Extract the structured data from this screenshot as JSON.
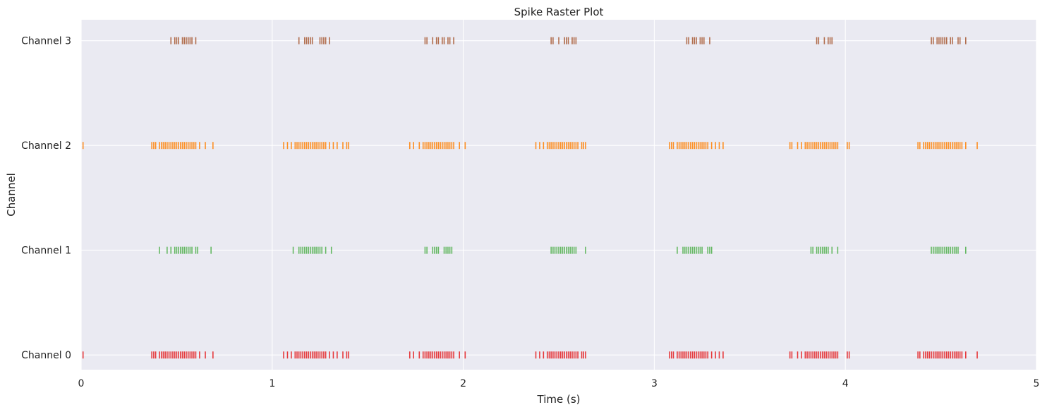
{
  "chart_data": {
    "type": "scatter",
    "subtype": "raster",
    "title": "Spike Raster Plot",
    "xlabel": "Time (s)",
    "ylabel": "Channel",
    "xlim": [
      0,
      5
    ],
    "ylim": [
      -0.14,
      3.2
    ],
    "xticks": [
      0,
      1,
      2,
      3,
      4,
      5
    ],
    "yticks": [
      {
        "value": 0,
        "label": "Channel 0"
      },
      {
        "value": 1,
        "label": "Channel 1"
      },
      {
        "value": 2,
        "label": "Channel 2"
      },
      {
        "value": 3,
        "label": "Channel 3"
      }
    ],
    "grid": true,
    "background": "#eaeaf2",
    "grid_color": "#ffffff",
    "series": [
      {
        "channel": 0,
        "color": "#e41a1c",
        "spike_times": [
          0.01,
          0.37,
          0.38,
          0.39,
          0.41,
          0.42,
          0.43,
          0.44,
          0.45,
          0.46,
          0.47,
          0.48,
          0.49,
          0.5,
          0.51,
          0.52,
          0.53,
          0.54,
          0.55,
          0.56,
          0.57,
          0.58,
          0.59,
          0.6,
          0.62,
          0.65,
          0.69,
          1.06,
          1.08,
          1.1,
          1.12,
          1.13,
          1.14,
          1.15,
          1.16,
          1.17,
          1.18,
          1.19,
          1.2,
          1.21,
          1.22,
          1.23,
          1.24,
          1.25,
          1.26,
          1.27,
          1.28,
          1.3,
          1.32,
          1.34,
          1.37,
          1.39,
          1.4,
          1.72,
          1.74,
          1.77,
          1.79,
          1.8,
          1.81,
          1.82,
          1.83,
          1.84,
          1.85,
          1.86,
          1.87,
          1.88,
          1.89,
          1.9,
          1.91,
          1.92,
          1.93,
          1.94,
          1.95,
          1.98,
          2.01,
          2.38,
          2.4,
          2.42,
          2.44,
          2.45,
          2.46,
          2.47,
          2.48,
          2.49,
          2.5,
          2.51,
          2.52,
          2.53,
          2.54,
          2.55,
          2.56,
          2.57,
          2.58,
          2.59,
          2.6,
          2.62,
          2.63,
          2.64,
          3.08,
          3.09,
          3.1,
          3.12,
          3.13,
          3.14,
          3.15,
          3.16,
          3.17,
          3.18,
          3.19,
          3.2,
          3.21,
          3.22,
          3.23,
          3.24,
          3.25,
          3.26,
          3.27,
          3.28,
          3.3,
          3.32,
          3.34,
          3.36,
          3.71,
          3.72,
          3.75,
          3.77,
          3.79,
          3.8,
          3.81,
          3.82,
          3.83,
          3.84,
          3.85,
          3.86,
          3.87,
          3.88,
          3.89,
          3.9,
          3.91,
          3.92,
          3.93,
          3.94,
          3.95,
          3.96,
          4.01,
          4.02,
          4.38,
          4.39,
          4.41,
          4.42,
          4.43,
          4.44,
          4.45,
          4.46,
          4.47,
          4.48,
          4.49,
          4.5,
          4.51,
          4.52,
          4.53,
          4.54,
          4.55,
          4.56,
          4.57,
          4.58,
          4.59,
          4.6,
          4.61,
          4.63,
          4.69
        ]
      },
      {
        "channel": 1,
        "color": "#4daf4a",
        "spike_times": [
          0.41,
          0.45,
          0.47,
          0.49,
          0.5,
          0.51,
          0.52,
          0.53,
          0.54,
          0.55,
          0.56,
          0.57,
          0.58,
          0.6,
          0.61,
          0.68,
          1.11,
          1.14,
          1.15,
          1.16,
          1.17,
          1.18,
          1.19,
          1.2,
          1.21,
          1.22,
          1.23,
          1.24,
          1.25,
          1.26,
          1.28,
          1.31,
          1.8,
          1.81,
          1.84,
          1.85,
          1.86,
          1.87,
          1.9,
          1.91,
          1.92,
          1.93,
          1.94,
          2.46,
          2.47,
          2.48,
          2.49,
          2.5,
          2.51,
          2.52,
          2.53,
          2.54,
          2.55,
          2.56,
          2.57,
          2.58,
          2.59,
          2.64,
          3.12,
          3.15,
          3.16,
          3.17,
          3.18,
          3.19,
          3.2,
          3.21,
          3.22,
          3.23,
          3.24,
          3.25,
          3.28,
          3.29,
          3.3,
          3.82,
          3.83,
          3.85,
          3.86,
          3.87,
          3.88,
          3.89,
          3.9,
          3.91,
          3.93,
          3.96,
          4.45,
          4.46,
          4.47,
          4.48,
          4.49,
          4.5,
          4.51,
          4.52,
          4.53,
          4.54,
          4.55,
          4.56,
          4.57,
          4.58,
          4.59,
          4.63
        ]
      },
      {
        "channel": 2,
        "color": "#ff7f00",
        "spike_times": [
          0.01,
          0.37,
          0.38,
          0.39,
          0.41,
          0.42,
          0.43,
          0.44,
          0.45,
          0.46,
          0.47,
          0.48,
          0.49,
          0.5,
          0.51,
          0.52,
          0.53,
          0.54,
          0.55,
          0.56,
          0.57,
          0.58,
          0.59,
          0.6,
          0.62,
          0.65,
          0.69,
          1.06,
          1.08,
          1.1,
          1.12,
          1.13,
          1.14,
          1.15,
          1.16,
          1.17,
          1.18,
          1.19,
          1.2,
          1.21,
          1.22,
          1.23,
          1.24,
          1.25,
          1.26,
          1.27,
          1.28,
          1.3,
          1.32,
          1.34,
          1.37,
          1.39,
          1.4,
          1.72,
          1.74,
          1.77,
          1.79,
          1.8,
          1.81,
          1.82,
          1.83,
          1.84,
          1.85,
          1.86,
          1.87,
          1.88,
          1.89,
          1.9,
          1.91,
          1.92,
          1.93,
          1.94,
          1.95,
          1.98,
          2.01,
          2.38,
          2.4,
          2.42,
          2.44,
          2.45,
          2.46,
          2.47,
          2.48,
          2.49,
          2.5,
          2.51,
          2.52,
          2.53,
          2.54,
          2.55,
          2.56,
          2.57,
          2.58,
          2.59,
          2.6,
          2.62,
          2.63,
          2.64,
          3.08,
          3.09,
          3.1,
          3.12,
          3.13,
          3.14,
          3.15,
          3.16,
          3.17,
          3.18,
          3.19,
          3.2,
          3.21,
          3.22,
          3.23,
          3.24,
          3.25,
          3.26,
          3.27,
          3.28,
          3.3,
          3.32,
          3.34,
          3.36,
          3.71,
          3.72,
          3.75,
          3.77,
          3.79,
          3.8,
          3.81,
          3.82,
          3.83,
          3.84,
          3.85,
          3.86,
          3.87,
          3.88,
          3.89,
          3.9,
          3.91,
          3.92,
          3.93,
          3.94,
          3.95,
          3.96,
          4.01,
          4.02,
          4.38,
          4.39,
          4.41,
          4.42,
          4.43,
          4.44,
          4.45,
          4.46,
          4.47,
          4.48,
          4.49,
          4.5,
          4.51,
          4.52,
          4.53,
          4.54,
          4.55,
          4.56,
          4.57,
          4.58,
          4.59,
          4.6,
          4.61,
          4.63,
          4.69
        ]
      },
      {
        "channel": 3,
        "color": "#a6562f",
        "spike_times": [
          0.47,
          0.49,
          0.5,
          0.51,
          0.53,
          0.54,
          0.55,
          0.56,
          0.57,
          0.58,
          0.6,
          1.14,
          1.17,
          1.18,
          1.19,
          1.2,
          1.21,
          1.25,
          1.26,
          1.27,
          1.28,
          1.3,
          1.8,
          1.81,
          1.84,
          1.86,
          1.87,
          1.89,
          1.9,
          1.92,
          1.93,
          1.95,
          2.46,
          2.47,
          2.5,
          2.53,
          2.54,
          2.55,
          2.57,
          2.58,
          2.59,
          3.17,
          3.18,
          3.2,
          3.21,
          3.22,
          3.24,
          3.25,
          3.26,
          3.29,
          3.85,
          3.86,
          3.89,
          3.91,
          3.92,
          3.93,
          4.45,
          4.46,
          4.48,
          4.49,
          4.5,
          4.51,
          4.52,
          4.53,
          4.55,
          4.56,
          4.59,
          4.6,
          4.63
        ]
      }
    ]
  }
}
